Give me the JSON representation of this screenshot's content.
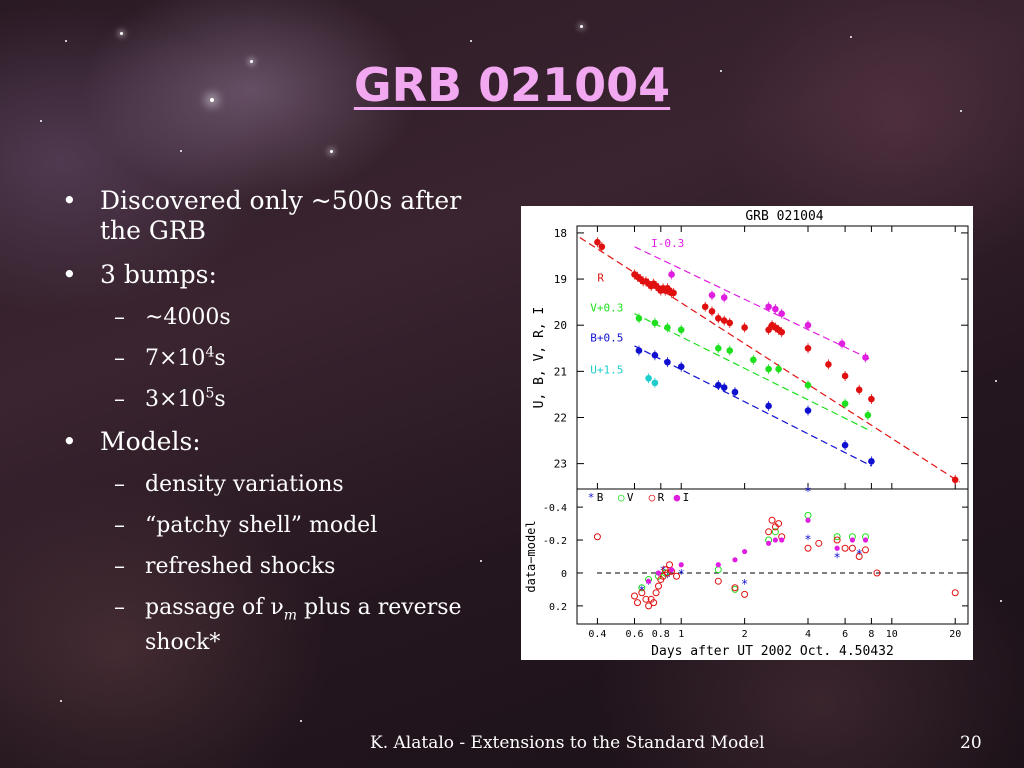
{
  "slide": {
    "title": "GRB 021004",
    "bullets": [
      {
        "text": "Discovered only ~500s after the GRB"
      },
      {
        "text": "3 bumps:",
        "sub": [
          {
            "text": "~4000s"
          },
          {
            "base": "7×10",
            "exp": "4",
            "unit": "s"
          },
          {
            "base": "3×10",
            "exp": "5",
            "unit": "s"
          }
        ]
      },
      {
        "text": "Models:",
        "sub": [
          {
            "text": "density variations"
          },
          {
            "text": "“patchy shell” model"
          },
          {
            "text": "refreshed shocks"
          },
          {
            "pre": "passage of ν",
            "sub_m": "m",
            "post": " plus a reverse shock*"
          }
        ]
      }
    ],
    "footer": "K. Alatalo - Extensions to the Standard Model",
    "page_number": "20"
  },
  "colors": {
    "title": "#f2a8f0",
    "I": "#e01ee0",
    "R": "#e01010",
    "V": "#1ee01e",
    "B": "#1010d0",
    "U": "#1ecccc"
  },
  "chart_data": [
    {
      "type": "scatter",
      "title": "GRB 021004",
      "ylabel": "U, B, V, R, I",
      "xscale": "log",
      "xlim": [
        0.32,
        23
      ],
      "ylim": [
        17.85,
        23.55
      ],
      "y_inverted": true,
      "yticks": [
        "18",
        "19",
        "20",
        "21",
        "22",
        "23"
      ],
      "series": [
        {
          "name": "I-0.3",
          "color": "#e01ee0",
          "x": [
            0.9,
            1.4,
            1.6,
            2.6,
            2.8,
            3.0,
            4.0,
            5.8,
            7.5
          ],
          "y": [
            18.9,
            19.35,
            19.4,
            19.6,
            19.65,
            19.75,
            20.0,
            20.4,
            20.7
          ],
          "fit": [
            [
              0.6,
              18.3
            ],
            [
              8.0,
              20.75
            ]
          ]
        },
        {
          "name": "R",
          "color": "#e01010",
          "x": [
            0.4,
            0.42,
            0.6,
            0.62,
            0.64,
            0.66,
            0.68,
            0.7,
            0.72,
            0.74,
            0.76,
            0.78,
            0.8,
            0.82,
            0.84,
            0.86,
            0.88,
            0.9,
            0.92,
            1.3,
            1.4,
            1.5,
            1.6,
            1.7,
            2.0,
            2.6,
            2.7,
            2.8,
            2.9,
            3.0,
            4.0,
            5.0,
            6.0,
            7.0,
            8.0,
            20.0
          ],
          "y": [
            18.2,
            18.3,
            18.9,
            18.95,
            19.0,
            19.05,
            19.05,
            19.1,
            19.15,
            19.1,
            19.15,
            19.2,
            19.25,
            19.2,
            19.25,
            19.2,
            19.25,
            19.3,
            19.3,
            19.6,
            19.7,
            19.85,
            19.9,
            19.95,
            20.05,
            20.1,
            20.0,
            20.05,
            20.1,
            20.15,
            20.5,
            20.85,
            21.1,
            21.4,
            21.6,
            23.35
          ],
          "fit": [
            [
              0.33,
              18.1
            ],
            [
              21.0,
              23.4
            ]
          ]
        },
        {
          "name": "V+0.3",
          "color": "#1ee01e",
          "x": [
            0.63,
            0.75,
            0.86,
            1.0,
            1.5,
            1.7,
            2.2,
            2.6,
            2.9,
            4.0,
            6.0,
            7.7
          ],
          "y": [
            19.85,
            19.95,
            20.05,
            20.1,
            20.5,
            20.55,
            20.75,
            20.95,
            20.95,
            21.3,
            21.7,
            21.95
          ],
          "fit": [
            [
              0.6,
              19.75
            ],
            [
              8.0,
              22.3
            ]
          ]
        },
        {
          "name": "B+0.5",
          "color": "#1010d0",
          "x": [
            0.63,
            0.75,
            0.86,
            1.0,
            1.5,
            1.6,
            1.8,
            2.6,
            4.0,
            6.0,
            8.0
          ],
          "y": [
            20.55,
            20.65,
            20.8,
            20.9,
            21.3,
            21.35,
            21.45,
            21.75,
            21.85,
            22.6,
            22.95
          ],
          "fit": [
            [
              0.6,
              20.45
            ],
            [
              8.0,
              23.05
            ]
          ]
        },
        {
          "name": "U+1.5",
          "color": "#1ecccc",
          "x": [
            0.7,
            0.75
          ],
          "y": [
            21.15,
            21.25
          ],
          "fit": []
        }
      ]
    },
    {
      "type": "scatter",
      "xlabel": "Days after UT 2002 Oct. 4.50432",
      "ylabel": "data−model",
      "xscale": "log",
      "xlim": [
        0.32,
        23
      ],
      "ylim": [
        -0.51,
        0.31
      ],
      "y_inverted": true,
      "xticks": [
        "0.4",
        "0.6",
        "0.8",
        "1",
        "2",
        "4",
        "6",
        "8",
        "10",
        "20"
      ],
      "yticks": [
        "-0.4",
        "-0.2",
        "0",
        "0.2"
      ],
      "legend": [
        "B",
        "V",
        "R",
        "I"
      ],
      "series": [
        {
          "name": "B",
          "color": "#1010d0",
          "x": [
            0.65,
            0.7,
            0.78,
            0.82,
            0.86,
            1.0,
            2.0,
            4.0,
            4.0,
            5.5,
            7.0
          ],
          "y": [
            0.1,
            0.06,
            0.01,
            -0.02,
            0.02,
            0.0,
            0.06,
            -0.5,
            -0.21,
            -0.1,
            -0.12
          ],
          "marker": "asterisk"
        },
        {
          "name": "V",
          "color": "#1ee01e",
          "x": [
            0.65,
            0.7,
            0.78,
            0.84,
            1.5,
            1.8,
            2.6,
            2.8,
            4.0,
            5.5,
            6.5,
            7.5
          ],
          "y": [
            0.09,
            0.04,
            0.02,
            0.0,
            -0.02,
            0.1,
            -0.2,
            -0.25,
            -0.35,
            -0.22,
            -0.22,
            -0.22
          ],
          "marker": "circle"
        },
        {
          "name": "R",
          "color": "#e01010",
          "x": [
            0.4,
            0.6,
            0.62,
            0.65,
            0.68,
            0.7,
            0.72,
            0.74,
            0.76,
            0.78,
            0.8,
            0.82,
            0.84,
            0.86,
            0.88,
            0.9,
            0.95,
            1.5,
            1.8,
            2.0,
            2.6,
            2.7,
            2.8,
            2.9,
            3.0,
            4.0,
            4.5,
            5.5,
            6.0,
            6.5,
            7.0,
            7.5,
            8.5,
            20.0
          ],
          "y": [
            -0.22,
            0.14,
            0.18,
            0.12,
            0.16,
            0.2,
            0.16,
            0.18,
            0.12,
            0.08,
            0.04,
            0.02,
            -0.02,
            0.0,
            -0.05,
            -0.01,
            0.02,
            0.05,
            0.09,
            0.13,
            -0.25,
            -0.32,
            -0.28,
            -0.3,
            -0.22,
            -0.15,
            -0.18,
            -0.2,
            -0.15,
            -0.15,
            -0.1,
            -0.14,
            0.0,
            0.12
          ],
          "marker": "circle"
        },
        {
          "name": "I",
          "color": "#e01ee0",
          "x": [
            0.7,
            0.78,
            0.9,
            1.0,
            1.5,
            1.8,
            2.0,
            2.6,
            2.8,
            3.0,
            4.0,
            5.5,
            6.5,
            7.5
          ],
          "y": [
            0.05,
            0.0,
            -0.02,
            -0.05,
            -0.05,
            -0.08,
            -0.13,
            -0.18,
            -0.2,
            -0.2,
            -0.32,
            -0.15,
            -0.2,
            -0.2
          ],
          "marker": "dot"
        }
      ]
    }
  ]
}
